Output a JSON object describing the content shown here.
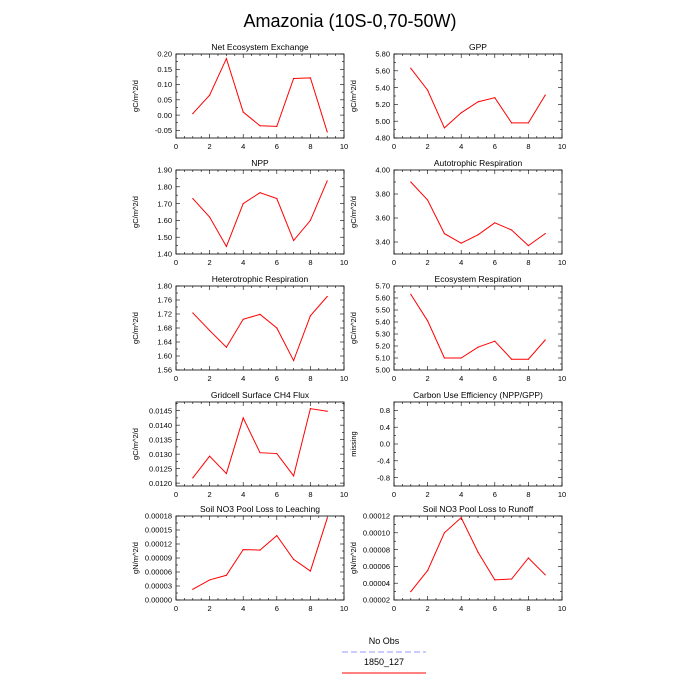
{
  "page": {
    "title": "Amazonia (10S-0,70-50W)"
  },
  "legend": {
    "entries": [
      {
        "label": "No Obs",
        "color": "#9999ff",
        "dash": true
      },
      {
        "label": "1850_127",
        "color": "#ff0000",
        "dash": false
      }
    ]
  },
  "chart_data": [
    {
      "type": "line",
      "title": "Net Ecosystem Exchange",
      "ylabel": "gC/m^2/d",
      "xlim": [
        0,
        10
      ],
      "xticks": [
        0,
        2,
        4,
        6,
        8,
        10
      ],
      "ylim": [
        -0.075,
        0.2
      ],
      "yticks": [
        -0.05,
        0,
        0.05,
        0.1,
        0.15,
        0.2
      ],
      "yticklabels": [
        "-0.05",
        "0.00",
        "0.05",
        "0.10",
        "0.15",
        "0.20"
      ],
      "series": [
        {
          "color": "#ff0000",
          "x": [
            1,
            2,
            3,
            4,
            5,
            6,
            7,
            8,
            9
          ],
          "y": [
            0.005,
            0.065,
            0.185,
            0.01,
            -0.035,
            -0.037,
            0.12,
            0.122,
            -0.055
          ]
        }
      ]
    },
    {
      "type": "line",
      "title": "GPP",
      "ylabel": "gC/m^2/d",
      "xlim": [
        0,
        10
      ],
      "xticks": [
        0,
        2,
        4,
        6,
        8,
        10
      ],
      "ylim": [
        4.8,
        5.8
      ],
      "yticks": [
        4.8,
        5.0,
        5.2,
        5.4,
        5.6,
        5.8
      ],
      "yticklabels": [
        "4.80",
        "5.00",
        "5.20",
        "5.40",
        "5.60",
        "5.80"
      ],
      "series": [
        {
          "color": "#ff0000",
          "x": [
            1,
            2,
            3,
            4,
            5,
            6,
            7,
            8,
            9
          ],
          "y": [
            5.63,
            5.37,
            4.92,
            5.1,
            5.23,
            5.28,
            4.98,
            4.98,
            5.31
          ]
        }
      ]
    },
    {
      "type": "line",
      "title": "NPP",
      "ylabel": "gC/m^2/d",
      "xlim": [
        0,
        10
      ],
      "xticks": [
        0,
        2,
        4,
        6,
        8,
        10
      ],
      "ylim": [
        1.4,
        1.9
      ],
      "yticks": [
        1.4,
        1.5,
        1.6,
        1.7,
        1.8,
        1.9
      ],
      "yticklabels": [
        "1.40",
        "1.50",
        "1.60",
        "1.70",
        "1.80",
        "1.90"
      ],
      "series": [
        {
          "color": "#ff0000",
          "x": [
            1,
            2,
            3,
            4,
            5,
            6,
            7,
            8,
            9
          ],
          "y": [
            1.73,
            1.62,
            1.445,
            1.7,
            1.765,
            1.73,
            1.48,
            1.6,
            1.835
          ]
        }
      ]
    },
    {
      "type": "line",
      "title": "Autotrophic Respiration",
      "ylabel": "gC/m^2/d",
      "xlim": [
        0,
        10
      ],
      "xticks": [
        0,
        2,
        4,
        6,
        8,
        10
      ],
      "ylim": [
        3.3,
        4.0
      ],
      "yticks": [
        3.4,
        3.6,
        3.8,
        4.0
      ],
      "yticklabels": [
        "3.40",
        "3.60",
        "3.80",
        "4.00"
      ],
      "series": [
        {
          "color": "#ff0000",
          "x": [
            1,
            2,
            3,
            4,
            5,
            6,
            7,
            8,
            9
          ],
          "y": [
            3.9,
            3.75,
            3.47,
            3.39,
            3.46,
            3.56,
            3.5,
            3.37,
            3.47
          ]
        }
      ]
    },
    {
      "type": "line",
      "title": "Heterotrophic Respiration",
      "ylabel": "gC/m^2/d",
      "xlim": [
        0,
        10
      ],
      "xticks": [
        0,
        2,
        4,
        6,
        8,
        10
      ],
      "ylim": [
        1.56,
        1.8
      ],
      "yticks": [
        1.56,
        1.6,
        1.64,
        1.68,
        1.72,
        1.76,
        1.8
      ],
      "yticklabels": [
        "1.56",
        "1.60",
        "1.64",
        "1.68",
        "1.72",
        "1.76",
        "1.80"
      ],
      "series": [
        {
          "color": "#ff0000",
          "x": [
            1,
            2,
            3,
            4,
            5,
            6,
            7,
            8,
            9
          ],
          "y": [
            1.723,
            1.673,
            1.625,
            1.705,
            1.719,
            1.68,
            1.587,
            1.715,
            1.77
          ]
        }
      ]
    },
    {
      "type": "line",
      "title": "Ecosystem Respiration",
      "ylabel": "gC/m^2/d",
      "xlim": [
        0,
        10
      ],
      "xticks": [
        0,
        2,
        4,
        6,
        8,
        10
      ],
      "ylim": [
        5.0,
        5.7
      ],
      "yticks": [
        5.0,
        5.1,
        5.2,
        5.3,
        5.4,
        5.5,
        5.6,
        5.7
      ],
      "yticklabels": [
        "5.00",
        "5.10",
        "5.20",
        "5.30",
        "5.40",
        "5.50",
        "5.60",
        "5.70"
      ],
      "series": [
        {
          "color": "#ff0000",
          "x": [
            1,
            2,
            3,
            4,
            5,
            6,
            7,
            8,
            9
          ],
          "y": [
            5.63,
            5.41,
            5.1,
            5.1,
            5.19,
            5.24,
            5.09,
            5.09,
            5.25
          ]
        }
      ]
    },
    {
      "type": "line",
      "title": "Gridcell Surface CH4 Flux",
      "ylabel": "gC/m^2/d",
      "xlim": [
        0,
        10
      ],
      "xticks": [
        0,
        2,
        4,
        6,
        8,
        10
      ],
      "ylim": [
        0.0119,
        0.0148
      ],
      "yticks": [
        0.012,
        0.0125,
        0.013,
        0.0135,
        0.014,
        0.0145
      ],
      "yticklabels": [
        "0.0120",
        "0.0125",
        "0.0130",
        "0.0135",
        "0.0140",
        "0.0145"
      ],
      "series": [
        {
          "color": "#ff0000",
          "x": [
            1,
            2,
            3,
            4,
            5,
            6,
            7,
            8,
            9
          ],
          "y": [
            0.01218,
            0.01293,
            0.01233,
            0.01425,
            0.01305,
            0.01302,
            0.01225,
            0.01457,
            0.01448
          ]
        }
      ]
    },
    {
      "type": "line",
      "title": "Carbon Use Efficiency (NPP/GPP)",
      "ylabel": "missing",
      "xlim": [
        0,
        10
      ],
      "xticks": [
        0,
        2,
        4,
        6,
        8,
        10
      ],
      "ylim": [
        -1.0,
        1.0
      ],
      "yticks": [
        -0.8,
        -0.4,
        0,
        0.4,
        0.8
      ],
      "yticklabels": [
        "-0.8",
        "-0.4",
        "0.0",
        "0.4",
        "0.8"
      ],
      "series": []
    },
    {
      "type": "line",
      "title": "Soil NO3 Pool Loss to Leaching",
      "ylabel": "gN/m^2/d",
      "xlim": [
        0,
        10
      ],
      "xticks": [
        0,
        2,
        4,
        6,
        8,
        10
      ],
      "ylim": [
        0,
        0.00018
      ],
      "yticks": [
        0,
        3e-05,
        6e-05,
        9e-05,
        0.00012,
        0.00015,
        0.00018
      ],
      "yticklabels": [
        "0.00000",
        "0.00003",
        "0.00006",
        "0.00009",
        "0.00012",
        "0.00015",
        "0.00018"
      ],
      "series": [
        {
          "color": "#ff0000",
          "x": [
            1,
            2,
            3,
            4,
            5,
            6,
            7,
            8,
            9
          ],
          "y": [
            2.3e-05,
            4.3e-05,
            5.3e-05,
            0.000108,
            0.000107,
            0.000138,
            8.7e-05,
            6.2e-05,
            0.000175
          ]
        }
      ]
    },
    {
      "type": "line",
      "title": "Soil NO3 Pool Loss to Runoff",
      "ylabel": "gN/m^2/d",
      "xlim": [
        0,
        10
      ],
      "xticks": [
        0,
        2,
        4,
        6,
        8,
        10
      ],
      "ylim": [
        2e-05,
        0.00012
      ],
      "yticks": [
        2e-05,
        4e-05,
        6e-05,
        8e-05,
        0.0001,
        0.00012
      ],
      "yticklabels": [
        "0.00002",
        "0.00004",
        "0.00006",
        "0.00008",
        "0.00010",
        "0.00012"
      ],
      "series": [
        {
          "color": "#ff0000",
          "x": [
            1,
            2,
            3,
            4,
            5,
            6,
            7,
            8,
            9
          ],
          "y": [
            3e-05,
            5.5e-05,
            0.0001,
            0.000118,
            7.7e-05,
            4.4e-05,
            4.5e-05,
            7e-05,
            5e-05
          ]
        }
      ]
    }
  ]
}
